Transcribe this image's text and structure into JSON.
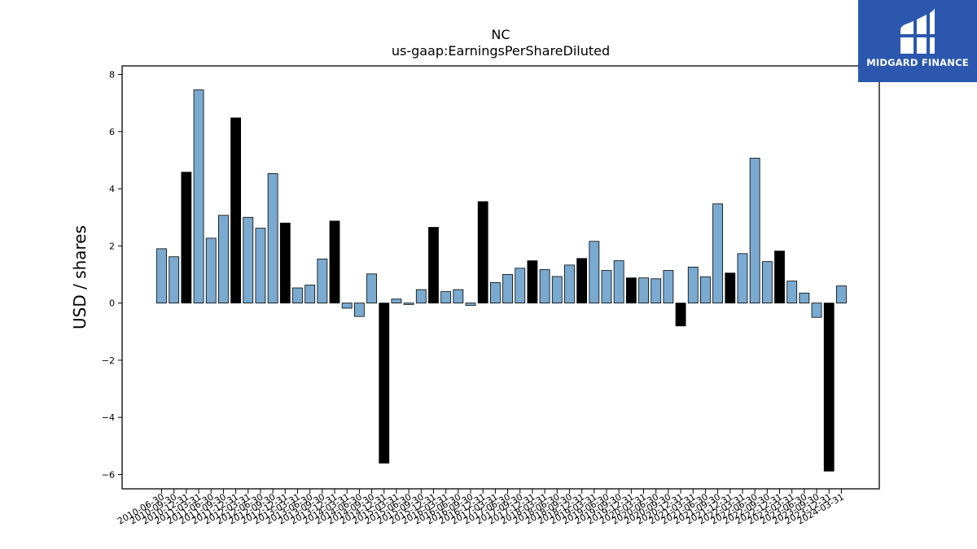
{
  "logo": {
    "text": "MIDGARD FINANCE"
  },
  "chart_data": {
    "type": "bar",
    "title": "NC",
    "subtitle": "us-gaap:EarningsPerShareDiluted",
    "ylabel": "USD / shares",
    "xlabel": "",
    "ylim": [
      -6.5,
      8.3
    ],
    "yticks": [
      -6,
      -4,
      -2,
      0,
      2,
      4,
      6,
      8
    ],
    "grid": false,
    "colors": {
      "quarter": "#7aaad0",
      "annual": "#000000",
      "edge": "#000000"
    },
    "categories": [
      "2010-06-30",
      "2010-09-30",
      "2010-12-31",
      "2011-03-31",
      "2011-06-30",
      "2011-09-30",
      "2011-12-31",
      "2012-03-31",
      "2012-06-30",
      "2012-09-30",
      "2012-12-31",
      "2013-03-31",
      "2013-06-30",
      "2013-09-30",
      "2013-12-31",
      "2014-03-31",
      "2014-06-30",
      "2014-09-30",
      "2014-12-31",
      "2015-03-31",
      "2015-06-30",
      "2015-09-30",
      "2015-12-31",
      "2016-03-31",
      "2016-06-30",
      "2016-09-30",
      "2016-12-31",
      "2017-03-31",
      "2017-06-30",
      "2017-09-30",
      "2017-12-31",
      "2018-03-31",
      "2018-06-30",
      "2018-09-30",
      "2018-12-31",
      "2019-03-31",
      "2019-06-30",
      "2019-09-30",
      "2019-12-31",
      "2020-03-31",
      "2020-06-30",
      "2020-09-30",
      "2020-12-31",
      "2021-03-31",
      "2021-06-30",
      "2021-09-30",
      "2021-12-31",
      "2022-03-31",
      "2022-06-30",
      "2022-09-30",
      "2022-12-31",
      "2023-03-31",
      "2023-06-30",
      "2023-09-30",
      "2023-12-31",
      "2024-03-31"
    ],
    "xtick_labels": [
      "2010-06-30",
      "2010-09-30",
      "2010-12-31",
      "2011-03-31",
      "2011-06-30",
      "2011-09-30",
      "2011-12-31",
      "2012-03-31",
      "2012-06-30",
      "2012-09-30",
      "2012-12-31",
      "2013-03-31",
      "2013-06-30",
      "2013-09-30",
      "2013-12-31",
      "2014-03-31",
      "2014-06-30",
      "2014-09-30",
      "2014-12-31",
      "2015-03-31",
      "2015-06-30",
      "2015-09-30",
      "2015-12-31",
      "2016-03-31",
      "2016-06-30",
      "2016-09-30",
      "2016-12-31",
      "2017-03-31",
      "2017-06-30",
      "2017-09-30",
      "2017-12-31",
      "2018-03-31",
      "2018-06-30",
      "2018-09-30",
      "2018-12-31",
      "2019-03-31",
      "2019-06-30",
      "2019-09-30",
      "2019-12-31",
      "2020-03-31",
      "2020-06-30",
      "2020-09-30",
      "2020-12-31",
      "2021-03-31",
      "2021-06-30",
      "2021-09-30",
      "2021-12-31",
      "2022-03-31",
      "2022-06-30",
      "2022-09-30",
      "2022-12-31",
      "2023-03-31",
      "2023-06-30",
      "2023-09-30",
      "2023-12-31",
      "2024-03-31"
    ],
    "values": [
      1.9,
      1.62,
      4.58,
      7.46,
      2.27,
      3.07,
      6.48,
      3.0,
      2.62,
      4.53,
      2.8,
      0.53,
      0.63,
      1.54,
      2.87,
      -0.18,
      -0.47,
      1.02,
      -5.6,
      0.14,
      -0.05,
      0.47,
      2.65,
      0.4,
      0.47,
      -0.08,
      3.55,
      0.72,
      1.0,
      1.22,
      1.48,
      1.17,
      0.93,
      1.33,
      1.56,
      2.16,
      1.14,
      1.48,
      0.88,
      0.88,
      0.85,
      1.14,
      -0.8,
      1.26,
      0.92,
      3.47,
      1.05,
      1.73,
      5.07,
      1.45,
      1.82,
      0.77,
      0.35,
      -0.5,
      -5.88,
      0.6
    ],
    "annual_flags": [
      0,
      0,
      1,
      0,
      0,
      0,
      1,
      0,
      0,
      0,
      1,
      0,
      0,
      0,
      1,
      0,
      0,
      0,
      1,
      0,
      0,
      0,
      1,
      0,
      0,
      0,
      1,
      0,
      0,
      0,
      1,
      0,
      0,
      0,
      1,
      0,
      0,
      0,
      1,
      0,
      0,
      0,
      1,
      0,
      0,
      0,
      1,
      0,
      0,
      0,
      1,
      0,
      0,
      0,
      1,
      0
    ]
  }
}
